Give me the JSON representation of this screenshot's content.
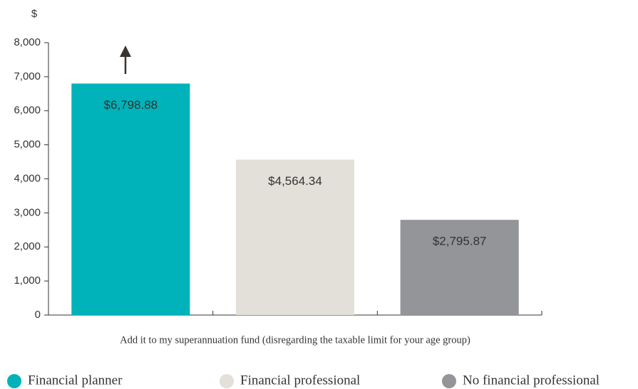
{
  "chart_data": {
    "type": "bar",
    "ylabel": "$",
    "categories": [
      "Add it to my superannuation fund (disregarding the taxable limit for your age group)"
    ],
    "series": [
      {
        "name": "Financial planner",
        "color": "#00b2b9",
        "values": [
          6798.88
        ],
        "value_labels": [
          "$6,798.88"
        ]
      },
      {
        "name": "Financial professional",
        "color": "#e3e0da",
        "values": [
          4564.34
        ],
        "value_labels": [
          "$4,564.34"
        ]
      },
      {
        "name": "No financial professional",
        "color": "#939598",
        "values": [
          2795.87
        ],
        "value_labels": [
          "$2,795.87"
        ]
      }
    ],
    "ylim": [
      0,
      8000
    ],
    "yticks": [
      0,
      {
        "value": 1000,
        "label": "1,000"
      },
      {
        "value": 2000,
        "label": "2,000"
      },
      {
        "value": 3000,
        "label": "3,000"
      },
      {
        "value": 4000,
        "label": "4,000"
      },
      {
        "value": 5000,
        "label": "5,000"
      },
      {
        "value": 6000,
        "label": "6,000"
      },
      {
        "value": 7000,
        "label": "7,000"
      },
      {
        "value": 8000,
        "label": "8,000"
      }
    ],
    "grid": false,
    "legend": "bottom"
  }
}
